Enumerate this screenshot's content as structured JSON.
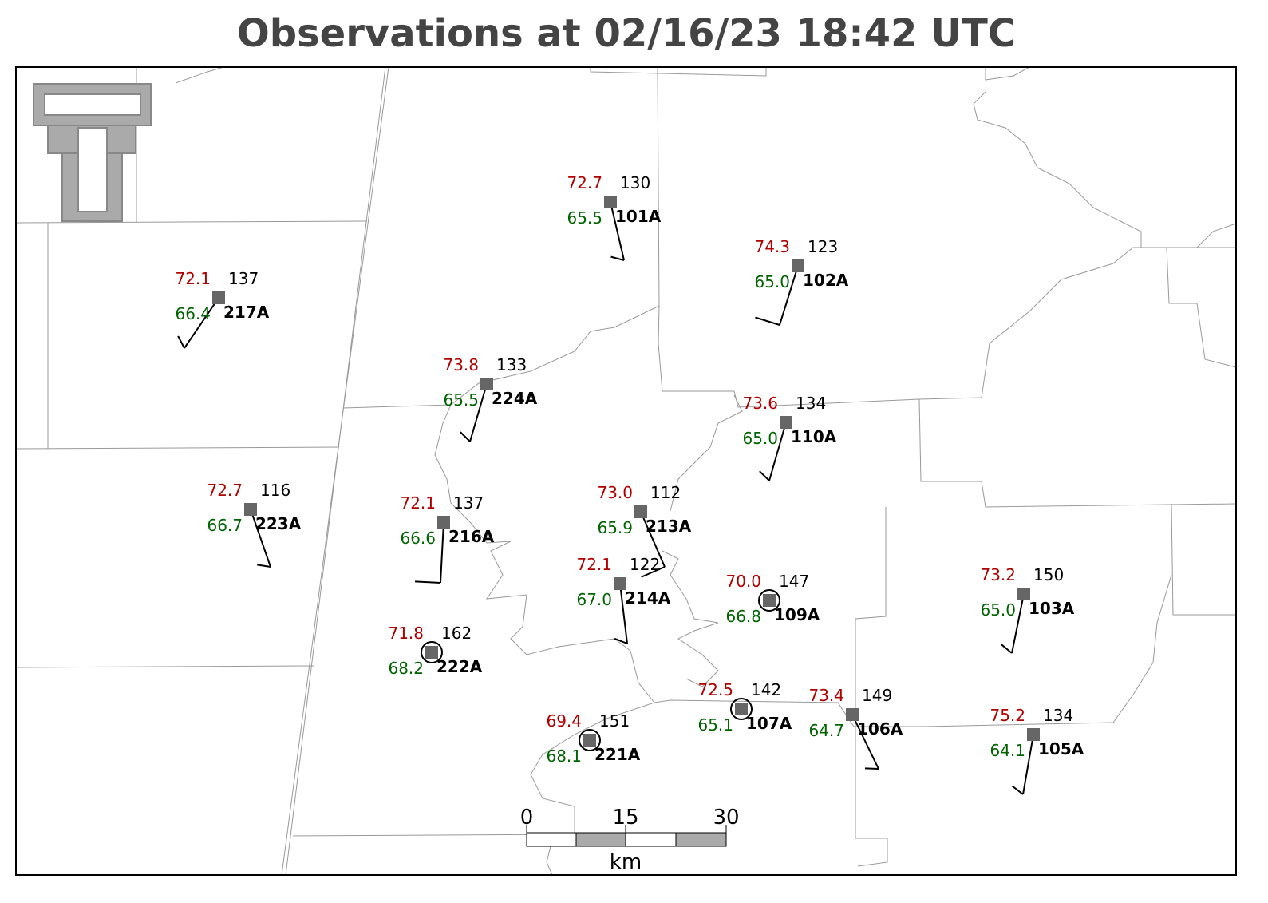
{
  "title": "Observations at 02/16/23 18:42 UTC",
  "stations": [
    {
      "temp": "72.7",
      "dewpoint": "65.5",
      "pressure": "130",
      "id": "101A"
    },
    {
      "temp": "74.3",
      "dewpoint": "65.0",
      "pressure": "123",
      "id": "102A"
    },
    {
      "temp": "72.1",
      "dewpoint": "66.4",
      "pressure": "137",
      "id": "217A"
    },
    {
      "temp": "73.8",
      "dewpoint": "65.5",
      "pressure": "133",
      "id": "224A"
    },
    {
      "temp": "73.6",
      "dewpoint": "65.0",
      "pressure": "134",
      "id": "110A"
    },
    {
      "temp": "72.7",
      "dewpoint": "66.7",
      "pressure": "116",
      "id": "223A"
    },
    {
      "temp": "72.1",
      "dewpoint": "66.6",
      "pressure": "137",
      "id": "216A"
    },
    {
      "temp": "73.0",
      "dewpoint": "65.9",
      "pressure": "112",
      "id": "213A"
    },
    {
      "temp": "72.1",
      "dewpoint": "67.0",
      "pressure": "122",
      "id": "214A"
    },
    {
      "temp": "70.0",
      "dewpoint": "66.8",
      "pressure": "147",
      "id": "109A"
    },
    {
      "temp": "73.2",
      "dewpoint": "65.0",
      "pressure": "150",
      "id": "103A"
    },
    {
      "temp": "71.8",
      "dewpoint": "68.2",
      "pressure": "162",
      "id": "222A"
    },
    {
      "temp": "72.5",
      "dewpoint": "65.1",
      "pressure": "142",
      "id": "107A"
    },
    {
      "temp": "73.4",
      "dewpoint": "64.7",
      "pressure": "149",
      "id": "106A"
    },
    {
      "temp": "69.4",
      "dewpoint": "68.1",
      "pressure": "151",
      "id": "221A"
    },
    {
      "temp": "75.2",
      "dewpoint": "64.1",
      "pressure": "134",
      "id": "105A"
    }
  ],
  "scale_bar": {
    "labels": [
      "0",
      "15",
      "30"
    ],
    "unit": "km"
  }
}
